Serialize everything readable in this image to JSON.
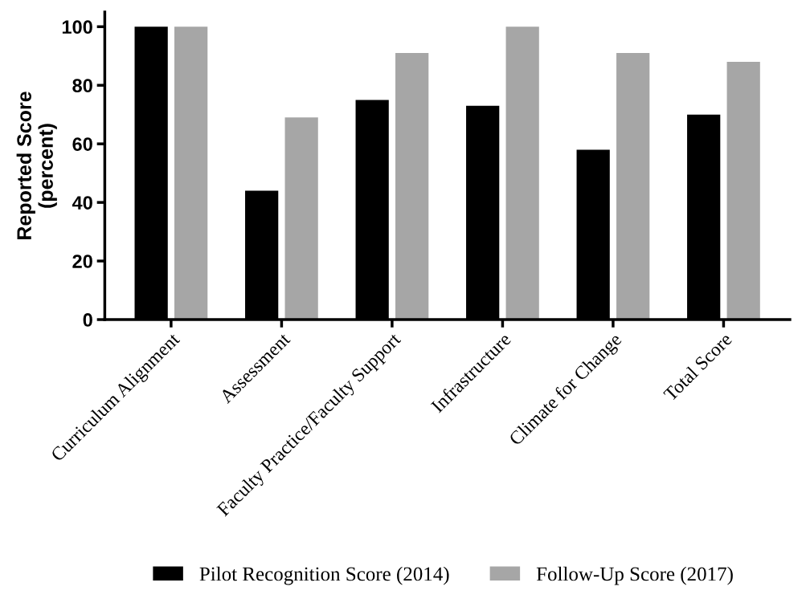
{
  "chart_data": {
    "type": "bar",
    "ylabel": "Reported Score\n(percent)",
    "categories": [
      "Curriculum Alignment",
      "Assessment",
      "Faculty Practice/Faculty Support",
      "Infrastructure",
      "Climate for Change",
      "Total Score"
    ],
    "series": [
      {
        "name": "Pilot Recognition Score (2014)",
        "color": "#000000",
        "values": [
          100,
          44,
          75,
          73,
          58,
          70
        ]
      },
      {
        "name": "Follow-Up Score (2017)",
        "color": "#a6a6a6",
        "values": [
          100,
          69,
          91,
          100,
          91,
          88
        ]
      }
    ],
    "ylim": [
      0,
      105
    ],
    "yticks": [
      0,
      20,
      40,
      60,
      80,
      100
    ],
    "grid": false,
    "legend": "bottom"
  }
}
